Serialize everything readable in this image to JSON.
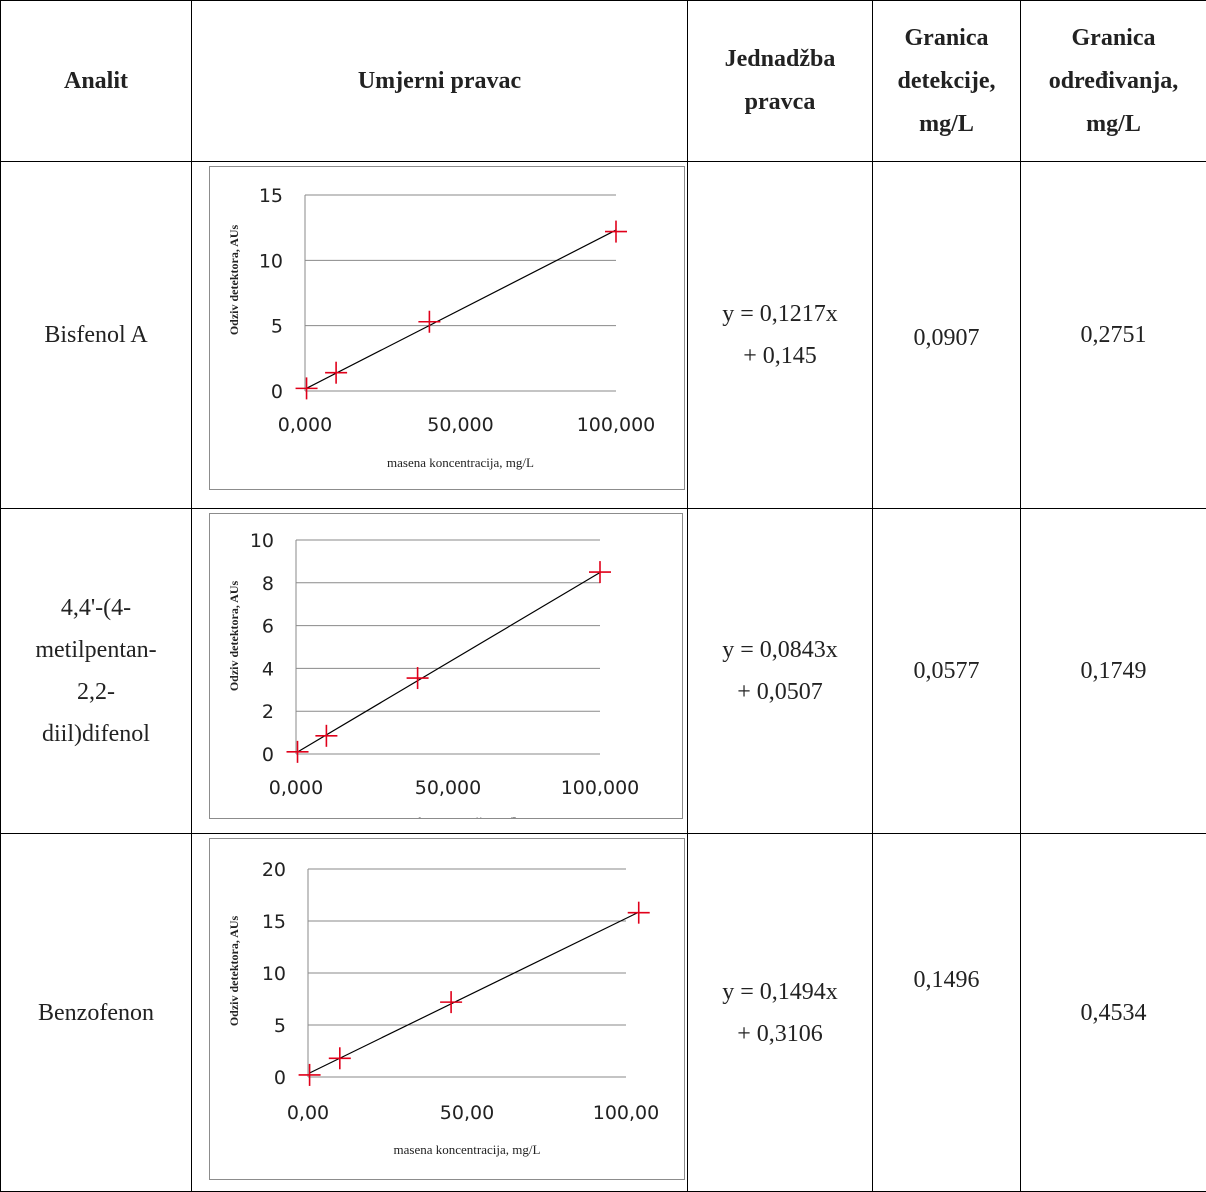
{
  "header": {
    "col1": "Analit",
    "col2": "Umjerni pravac",
    "col3": "Jednadžba\npravca",
    "col4": "Granica\ndetekcije,\nmg/L",
    "col5": "Granica\nodređivanja,\nmg/L"
  },
  "rows": [
    {
      "analyte": "Bisfenol A",
      "equation": "y = 0,1217x\n+ 0,145",
      "lod": "0,0907",
      "loq": "0,2751"
    },
    {
      "analyte": "4,4'-(4-\nmetilpentan-\n2,2-\ndiil)difenol",
      "equation": "y = 0,0843x\n+ 0,0507",
      "lod": "0,0577",
      "loq": "0,1749"
    },
    {
      "analyte": "Benzofenon",
      "equation": "y = 0,1494x\n+ 0,3106",
      "lod": "0,1496",
      "loq": "0,4534"
    }
  ],
  "chart_data": [
    {
      "type": "scatter",
      "title": "",
      "xlabel": "masena koncentracija, mg/L",
      "ylabel": "Odziv detektora, AUs",
      "xlim": [
        0,
        100
      ],
      "ylim": [
        0,
        15
      ],
      "xtick_labels": [
        "0,000",
        "50,000",
        "100,000"
      ],
      "ytick_labels": [
        "0",
        "5",
        "10",
        "15"
      ],
      "points": [
        {
          "x": 0.5,
          "y": 0.2
        },
        {
          "x": 10,
          "y": 1.4
        },
        {
          "x": 40,
          "y": 5.3
        },
        {
          "x": 100,
          "y": 12.2
        }
      ],
      "trendline": {
        "slope": 0.1217,
        "intercept": 0.145
      },
      "marker_color": "#e0001a",
      "line_color": "#000000",
      "grid": true
    },
    {
      "type": "scatter",
      "title": "",
      "xlabel": "masena koncentracija mg/L",
      "ylabel": "Odziv detektora, AUs",
      "xlim": [
        0,
        100
      ],
      "ylim": [
        0,
        10
      ],
      "xtick_labels": [
        "0,000",
        "50,000",
        "100,000"
      ],
      "ytick_labels": [
        "0",
        "2",
        "4",
        "6",
        "8",
        "10"
      ],
      "points": [
        {
          "x": 0.5,
          "y": 0.1
        },
        {
          "x": 10,
          "y": 0.85
        },
        {
          "x": 40,
          "y": 3.55
        },
        {
          "x": 100,
          "y": 8.5
        }
      ],
      "trendline": {
        "slope": 0.0843,
        "intercept": 0.0507
      },
      "marker_color": "#e0001a",
      "line_color": "#000000",
      "grid": true
    },
    {
      "type": "scatter",
      "title": "",
      "xlabel": "masena koncentracija, mg/L",
      "ylabel": "Odziv detektora, AUs",
      "xlim": [
        0,
        100
      ],
      "ylim": [
        0,
        20
      ],
      "xtick_labels": [
        "0,00",
        "50,00",
        "100,00"
      ],
      "ytick_labels": [
        "0",
        "5",
        "10",
        "15",
        "20"
      ],
      "points": [
        {
          "x": 0.5,
          "y": 0.2
        },
        {
          "x": 10,
          "y": 1.8
        },
        {
          "x": 45,
          "y": 7.2
        },
        {
          "x": 104,
          "y": 15.8
        }
      ],
      "trendline": {
        "slope": 0.1494,
        "intercept": 0.3106
      },
      "marker_color": "#e0001a",
      "line_color": "#000000",
      "grid": true
    }
  ]
}
